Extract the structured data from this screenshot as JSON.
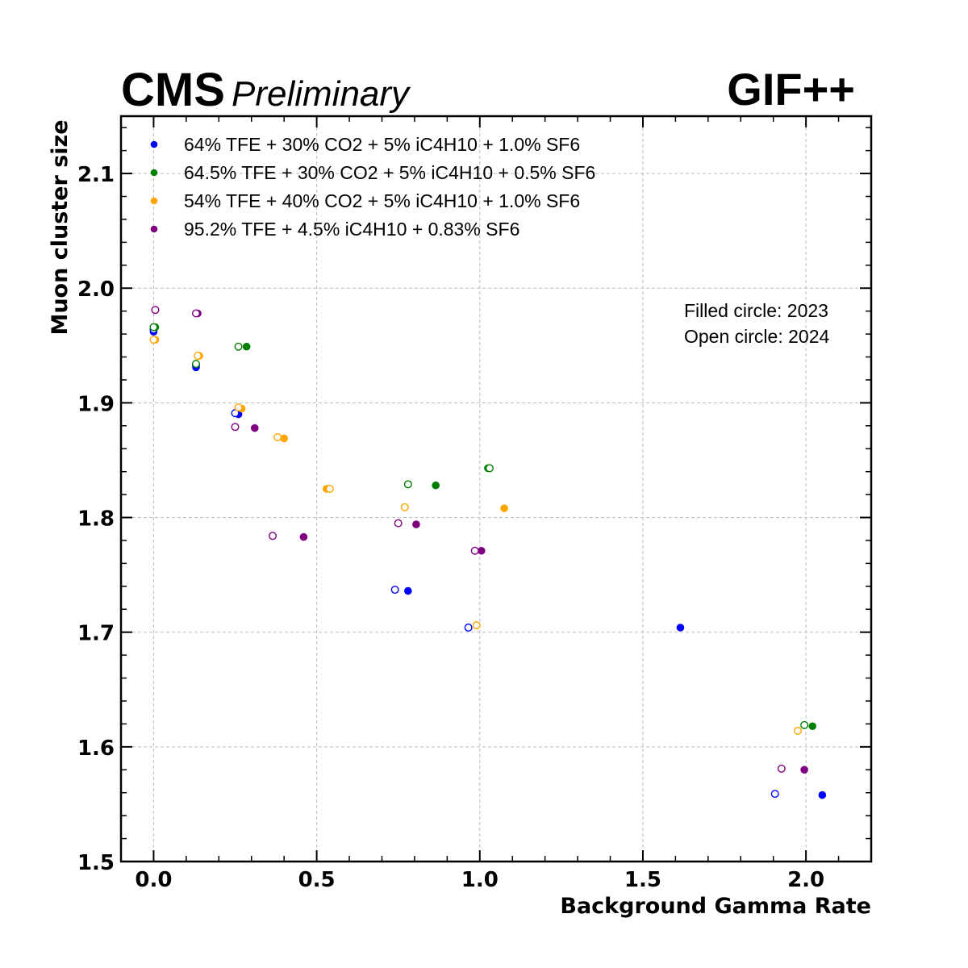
{
  "header": {
    "experiment": "CMS",
    "status": "Preliminary",
    "facility": "GIF++"
  },
  "notes": [
    "Filled circle: 2023",
    "Open circle: 2024"
  ],
  "chart_data": {
    "type": "scatter",
    "title": "",
    "xlabel": "Background Gamma Rate",
    "ylabel": "Muon cluster size",
    "xlim": [
      -0.1,
      2.2
    ],
    "ylim": [
      1.5,
      2.15
    ],
    "xticks": [
      "0.0",
      "0.5",
      "1.0",
      "1.5",
      "2.0"
    ],
    "yticks": [
      "1.5",
      "1.6",
      "1.7",
      "1.8",
      "1.9",
      "2.0",
      "2.1"
    ],
    "grid": true,
    "legend_position": "top-left",
    "marker_legend": {
      "filled": "2023",
      "open": "2024"
    },
    "series": [
      {
        "name": "64% TFE + 30% CO2 + 5% iC4H10 + 1.0% SF6",
        "color": "#0000ff",
        "points": [
          {
            "x": 0.0,
            "y": 1.962,
            "filled": true
          },
          {
            "x": 0.13,
            "y": 1.931,
            "filled": true
          },
          {
            "x": 0.26,
            "y": 1.89,
            "filled": true
          },
          {
            "x": 0.78,
            "y": 1.736,
            "filled": true
          },
          {
            "x": 1.615,
            "y": 1.704,
            "filled": true
          },
          {
            "x": 2.05,
            "y": 1.558,
            "filled": true
          },
          {
            "x": 0.0,
            "y": 1.964,
            "filled": false
          },
          {
            "x": 0.13,
            "y": 1.933,
            "filled": false
          },
          {
            "x": 0.25,
            "y": 1.891,
            "filled": false
          },
          {
            "x": 0.74,
            "y": 1.737,
            "filled": false
          },
          {
            "x": 0.965,
            "y": 1.704,
            "filled": false
          },
          {
            "x": 1.905,
            "y": 1.559,
            "filled": false
          }
        ]
      },
      {
        "name": "64.5% TFE + 30% CO2 + 5% iC4H10 + 0.5% SF6",
        "color": "#008000",
        "points": [
          {
            "x": 0.005,
            "y": 1.966,
            "filled": true
          },
          {
            "x": 0.285,
            "y": 1.949,
            "filled": true
          },
          {
            "x": 0.865,
            "y": 1.828,
            "filled": true
          },
          {
            "x": 1.025,
            "y": 1.843,
            "filled": true
          },
          {
            "x": 2.02,
            "y": 1.618,
            "filled": true
          },
          {
            "x": 0.0,
            "y": 1.966,
            "filled": false
          },
          {
            "x": 0.13,
            "y": 1.934,
            "filled": false
          },
          {
            "x": 0.26,
            "y": 1.949,
            "filled": false
          },
          {
            "x": 0.78,
            "y": 1.829,
            "filled": false
          },
          {
            "x": 1.03,
            "y": 1.843,
            "filled": false
          },
          {
            "x": 1.995,
            "y": 1.619,
            "filled": false
          }
        ]
      },
      {
        "name": "54% TFE + 40% CO2 + 5% iC4H10 + 1.0% SF6",
        "color": "#ffa500",
        "points": [
          {
            "x": 0.005,
            "y": 1.955,
            "filled": true
          },
          {
            "x": 0.14,
            "y": 1.941,
            "filled": true
          },
          {
            "x": 0.27,
            "y": 1.895,
            "filled": true
          },
          {
            "x": 0.4,
            "y": 1.869,
            "filled": true
          },
          {
            "x": 0.53,
            "y": 1.825,
            "filled": true
          },
          {
            "x": 1.075,
            "y": 1.808,
            "filled": true
          },
          {
            "x": 0.0,
            "y": 1.955,
            "filled": false
          },
          {
            "x": 0.135,
            "y": 1.941,
            "filled": false
          },
          {
            "x": 0.26,
            "y": 1.896,
            "filled": false
          },
          {
            "x": 0.38,
            "y": 1.87,
            "filled": false
          },
          {
            "x": 0.54,
            "y": 1.825,
            "filled": false
          },
          {
            "x": 0.77,
            "y": 1.809,
            "filled": false
          },
          {
            "x": 0.99,
            "y": 1.706,
            "filled": false
          },
          {
            "x": 1.975,
            "y": 1.614,
            "filled": false
          }
        ]
      },
      {
        "name": "95.2% TFE + 4.5% iC4H10 + 0.83% SF6",
        "color": "#800080",
        "points": [
          {
            "x": 0.005,
            "y": 1.981,
            "filled": true
          },
          {
            "x": 0.135,
            "y": 1.978,
            "filled": true
          },
          {
            "x": 0.31,
            "y": 1.878,
            "filled": true
          },
          {
            "x": 0.46,
            "y": 1.783,
            "filled": true
          },
          {
            "x": 0.805,
            "y": 1.794,
            "filled": true
          },
          {
            "x": 1.005,
            "y": 1.771,
            "filled": true
          },
          {
            "x": 1.995,
            "y": 1.58,
            "filled": true
          },
          {
            "x": 0.005,
            "y": 1.981,
            "filled": false
          },
          {
            "x": 0.13,
            "y": 1.978,
            "filled": false
          },
          {
            "x": 0.25,
            "y": 1.879,
            "filled": false
          },
          {
            "x": 0.365,
            "y": 1.784,
            "filled": false
          },
          {
            "x": 0.75,
            "y": 1.795,
            "filled": false
          },
          {
            "x": 0.985,
            "y": 1.771,
            "filled": false
          },
          {
            "x": 1.925,
            "y": 1.581,
            "filled": false
          }
        ]
      }
    ]
  }
}
